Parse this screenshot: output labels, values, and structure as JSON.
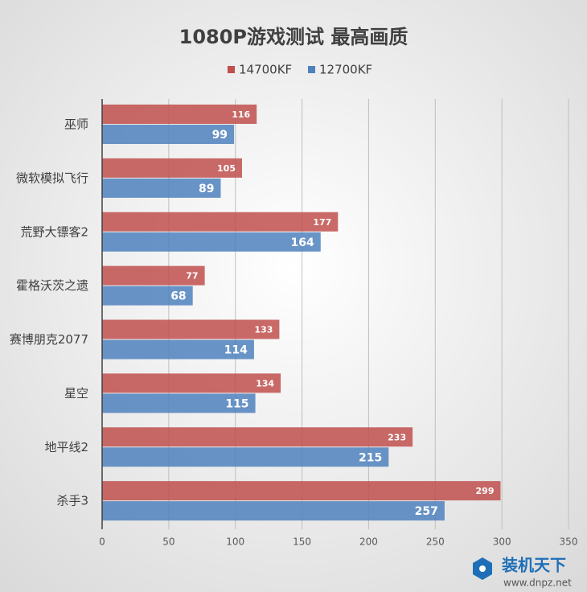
{
  "chart_data": {
    "type": "bar",
    "orientation": "horizontal",
    "title": "1080P游戏测试 最高画质",
    "categories": [
      "巫师",
      "微软模拟飞行",
      "荒野大镖客2",
      "霍格沃茨之遗",
      "赛博朋克2077",
      "星空",
      "地平线2",
      "杀手3"
    ],
    "series": [
      {
        "name": "14700KF",
        "color": "#c0504d",
        "values": [
          116,
          105,
          177,
          77,
          133,
          134,
          233,
          299
        ]
      },
      {
        "name": "12700KF",
        "color": "#4f81bd",
        "values": [
          99,
          89,
          164,
          68,
          114,
          115,
          215,
          257
        ]
      }
    ],
    "xlim": [
      0,
      350
    ],
    "xticks": [
      0,
      50,
      100,
      150,
      200,
      250,
      300,
      350
    ],
    "grid": true,
    "legend": "top",
    "watermark": {
      "brand": "装机天下",
      "url": "www.dnpz.net"
    }
  }
}
